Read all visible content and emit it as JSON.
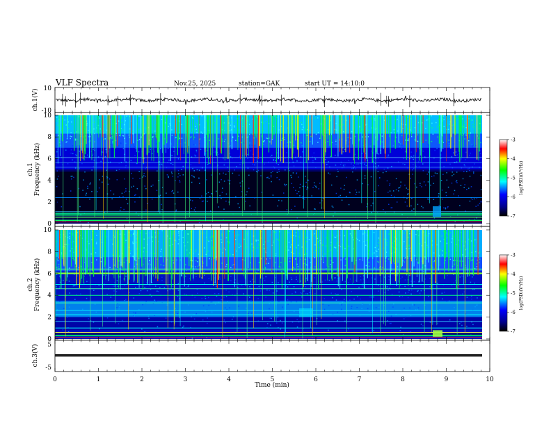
{
  "header": {
    "title": "VLF Spectra",
    "date": "Nov.25, 2025",
    "station": "station=GAK",
    "start": "start UT = 14:10:0"
  },
  "chart_data": [
    {
      "type": "line",
      "ylabel": "ch.1(V)",
      "ylim": [
        -10,
        10
      ],
      "yticks": [
        "10",
        "-10"
      ],
      "xlim": [
        0,
        10
      ],
      "series_color": "#000000"
    },
    {
      "type": "heatmap",
      "ylabel_line1": "ch.1",
      "ylabel_line2": "Frequency (kHz)",
      "ylim": [
        0,
        10
      ],
      "yticks": [
        "0",
        "2",
        "4",
        "6",
        "8",
        "10"
      ],
      "xlim": [
        0,
        10
      ],
      "colorbar": {
        "label": "log(PSD)(V²/Hz)",
        "range": [
          -7,
          -3
        ],
        "ticks": [
          "-3",
          "-4",
          "-5",
          "-6",
          "-7"
        ],
        "colors": [
          "#000000",
          "#00008b",
          "#0000ff",
          "#00ffff",
          "#00ff00",
          "#ffff00",
          "#ff0000",
          "#ffffff"
        ]
      }
    },
    {
      "type": "heatmap",
      "ylabel_line1": "ch.2",
      "ylabel_line2": "Frequency (kHz)",
      "ylim": [
        0,
        10
      ],
      "yticks": [
        "0",
        "2",
        "4",
        "6",
        "8",
        "10"
      ],
      "xlim": [
        0,
        10
      ],
      "colorbar": {
        "label": "log(PSD)(V²/Hz)",
        "range": [
          -7,
          -3
        ],
        "ticks": [
          "-3",
          "-4",
          "-5",
          "-6",
          "-7"
        ],
        "colors": [
          "#000000",
          "#00008b",
          "#0000ff",
          "#00ffff",
          "#00ff00",
          "#ffff00",
          "#ff0000",
          "#ffffff"
        ]
      }
    },
    {
      "type": "line",
      "ylabel": "ch.3(V)",
      "ylim": [
        -5,
        5
      ],
      "yticks": [
        "5",
        "-5"
      ],
      "xlim": [
        0,
        10
      ],
      "series_color": "#000000",
      "xlabel": "Time (min)",
      "xticks": [
        "0",
        "1",
        "2",
        "3",
        "4",
        "5",
        "6",
        "7",
        "8",
        "9",
        "10"
      ]
    }
  ]
}
